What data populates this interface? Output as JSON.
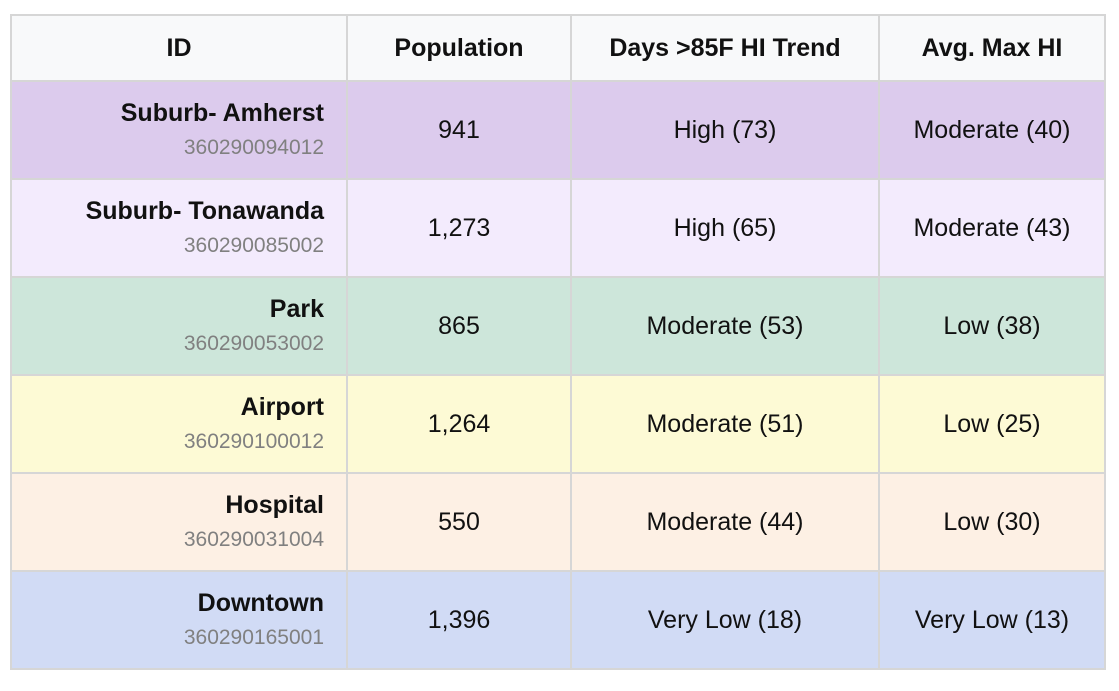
{
  "table": {
    "headers": [
      "ID",
      "Population",
      "Days >85F HI Trend",
      "Avg. Max HI"
    ],
    "rows": [
      {
        "name": "Suburb- Amherst",
        "code": "360290094012",
        "population": "941",
        "trend": "High (73)",
        "avg_max": "Moderate (40)",
        "color": "#dccbed"
      },
      {
        "name": "Suburb- Tonawanda",
        "code": "360290085002",
        "population": "1,273",
        "trend": "High (65)",
        "avg_max": "Moderate (43)",
        "color": "#f3ebfd"
      },
      {
        "name": "Park",
        "code": "360290053002",
        "population": "865",
        "trend": "Moderate (53)",
        "avg_max": "Low (38)",
        "color": "#cde6da"
      },
      {
        "name": "Airport",
        "code": "360290100012",
        "population": "1,264",
        "trend": "Moderate (51)",
        "avg_max": "Low (25)",
        "color": "#fdfad5"
      },
      {
        "name": "Hospital",
        "code": "360290031004",
        "population": "550",
        "trend": "Moderate (44)",
        "avg_max": "Low (30)",
        "color": "#fdf0e4"
      },
      {
        "name": "Downtown",
        "code": "360290165001",
        "population": "1,396",
        "trend": "Very Low (18)",
        "avg_max": "Very Low (13)",
        "color": "#d1dbf5"
      }
    ]
  }
}
